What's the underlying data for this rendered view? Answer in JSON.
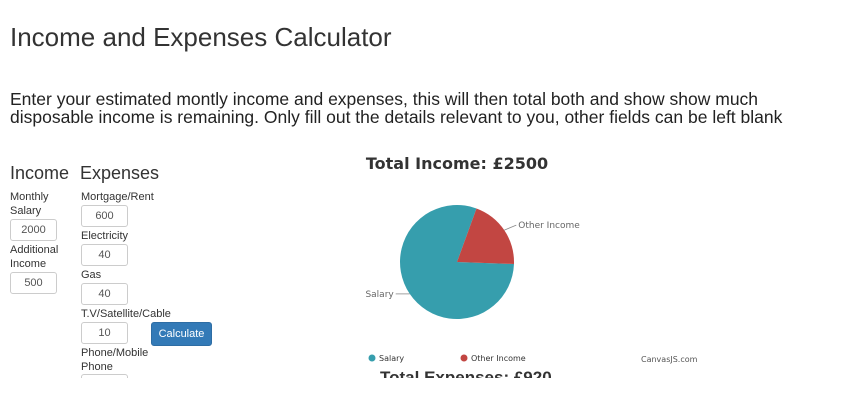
{
  "page": {
    "title": "Income and Expenses Calculator",
    "intro": "Enter your estimated montly income and expenses, this will then total both and show show much disposable income is remaining. Only fill out the details relevant to you, other fields can be left blank"
  },
  "income": {
    "heading": "Income",
    "fields": [
      {
        "label_line1": "Monthly",
        "label_line2": "Salary",
        "value": "2000"
      },
      {
        "label_line1": "Additional",
        "label_line2": "Income",
        "value": "500"
      }
    ]
  },
  "expenses": {
    "heading": "Expenses",
    "fields": [
      {
        "label": "Mortgage/Rent",
        "value": "600"
      },
      {
        "label": "Electricity",
        "value": "40"
      },
      {
        "label": "Gas",
        "value": "40"
      },
      {
        "label": "T.V/Satellite/Cable",
        "value": "10"
      },
      {
        "label_line1": "Phone/Mobile",
        "label_line2": "Phone",
        "value": ""
      }
    ]
  },
  "calculate_button": "Calculate",
  "chart_data": [
    {
      "type": "pie",
      "title": "Total Income: £2500",
      "slices": [
        {
          "label": "Salary",
          "value": 2000,
          "color": "#369EAD"
        },
        {
          "label": "Other Income",
          "value": 500,
          "color": "#C24642"
        }
      ],
      "legend_position": "bottom",
      "credit": "CanvasJS.com"
    },
    {
      "type": "pie",
      "title": "Total Expenses: £920"
    }
  ]
}
